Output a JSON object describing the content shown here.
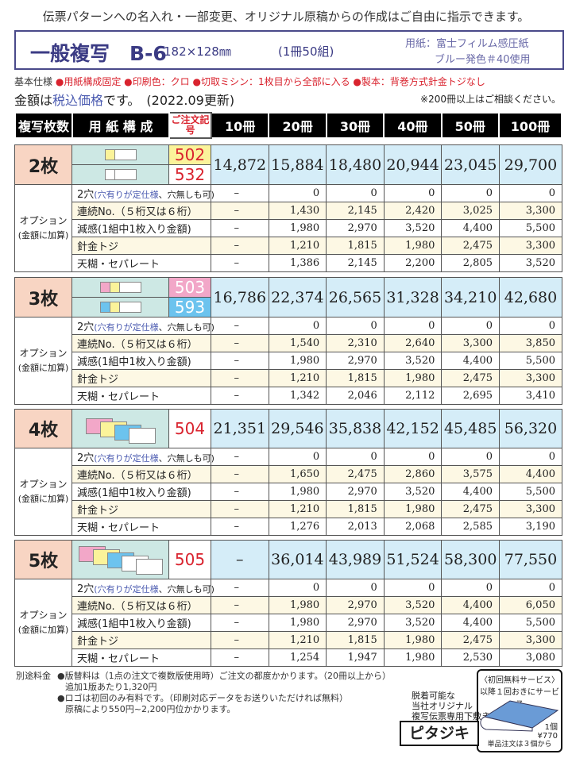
{
  "intro": "伝票パターンへの名入れ・一部変更、オリジナル原稿からの作成はご自由に指示できます。",
  "title": "一般複写　B-6",
  "size": "182×128㎜",
  "per_book": "(1冊50組)",
  "paper_line1": "用紙：富士フィルム感圧紙",
  "paper_line2": "ブルー発色＃40使用",
  "spec_label": "基本仕様",
  "specs": [
    "●用紙構成固定",
    "●印刷色：クロ",
    "●切取ミシン：1枚目から全部に入る",
    "●製本：背巻方式針金トジなし"
  ],
  "price_note_pre": "金額は",
  "price_note_bold": "税込価格",
  "price_note_post": "です。　(2022.09更新)",
  "consult": "※200冊以上はご相談ください。",
  "headers": {
    "count": "複写枚数",
    "paper": "用 紙 構 成",
    "code": "ご注文記　号",
    "qty": [
      "10冊",
      "20冊",
      "30冊",
      "40冊",
      "50冊",
      "100冊"
    ]
  },
  "option_label": "オプション",
  "option_sub": "(金額に加算)",
  "colors": {
    "white": "#ffffff",
    "yellow": "#fbf39a",
    "pink": "#f2a7c8",
    "blue": "#6cc3ee",
    "red": "#d9232e"
  },
  "blocks": [
    {
      "count": "2枚",
      "rows": [
        {
          "code": "502",
          "code_bg": "yellow",
          "sheets": [
            "white",
            "yellow"
          ]
        },
        {
          "code": "532",
          "code_bg": "white",
          "sheets": [
            "white",
            "white"
          ]
        }
      ],
      "prices": [
        "14,872",
        "15,884",
        "18,480",
        "20,944",
        "23,045",
        "29,700"
      ],
      "options": [
        [
          "–",
          "0",
          "0",
          "0",
          "0",
          "0"
        ],
        [
          "–",
          "1,430",
          "2,145",
          "2,420",
          "3,025",
          "3,300"
        ],
        [
          "–",
          "1,980",
          "2,970",
          "3,520",
          "4,400",
          "5,500"
        ],
        [
          "–",
          "1,210",
          "1,815",
          "1,980",
          "2,475",
          "3,300"
        ],
        [
          "–",
          "1,386",
          "2,145",
          "2,200",
          "2,805",
          "3,520"
        ]
      ]
    },
    {
      "count": "3枚",
      "rows": [
        {
          "code": "503",
          "code_bg": "pink",
          "sheets": [
            "white",
            "yellow",
            "pink"
          ]
        },
        {
          "code": "593",
          "code_bg": "blue",
          "sheets": [
            "white",
            "yellow",
            "blue"
          ]
        }
      ],
      "prices": [
        "16,786",
        "22,374",
        "26,565",
        "31,328",
        "34,210",
        "42,680"
      ],
      "options": [
        [
          "–",
          "0",
          "0",
          "0",
          "0",
          "0"
        ],
        [
          "–",
          "1,540",
          "2,310",
          "2,640",
          "3,300",
          "3,850"
        ],
        [
          "–",
          "1,980",
          "2,970",
          "3,520",
          "4,400",
          "5,500"
        ],
        [
          "–",
          "1,210",
          "1,815",
          "1,980",
          "2,475",
          "3,300"
        ],
        [
          "–",
          "1,342",
          "2,046",
          "2,112",
          "2,695",
          "3,410"
        ]
      ]
    },
    {
      "count": "4枚",
      "rows": [
        {
          "code": "504",
          "code_bg": "white",
          "sheets": [
            "white",
            "blue",
            "yellow",
            "pink"
          ]
        }
      ],
      "prices": [
        "21,351",
        "29,546",
        "35,838",
        "42,152",
        "45,485",
        "56,320"
      ],
      "options": [
        [
          "–",
          "0",
          "0",
          "0",
          "0",
          "0"
        ],
        [
          "–",
          "1,650",
          "2,475",
          "2,860",
          "3,575",
          "4,400"
        ],
        [
          "–",
          "1,980",
          "2,970",
          "3,520",
          "4,400",
          "5,500"
        ],
        [
          "–",
          "1,210",
          "1,815",
          "1,980",
          "2,475",
          "3,300"
        ],
        [
          "–",
          "1,276",
          "2,013",
          "2,068",
          "2,585",
          "3,190"
        ]
      ]
    },
    {
      "count": "5枚",
      "rows": [
        {
          "code": "505",
          "code_bg": "white",
          "sheets": [
            "white",
            "white",
            "blue",
            "yellow",
            "pink"
          ]
        }
      ],
      "prices": [
        "–",
        "36,014",
        "43,989",
        "51,524",
        "58,300",
        "77,550"
      ],
      "options": [
        [
          "–",
          "0",
          "0",
          "0",
          "0",
          "0"
        ],
        [
          "–",
          "1,980",
          "2,970",
          "3,520",
          "4,400",
          "6,050"
        ],
        [
          "–",
          "1,980",
          "2,970",
          "3,520",
          "4,400",
          "5,500"
        ],
        [
          "–",
          "1,210",
          "1,815",
          "1,980",
          "2,475",
          "3,300"
        ],
        [
          "–",
          "1,254",
          "1,947",
          "1,980",
          "2,530",
          "3,080"
        ]
      ]
    }
  ],
  "option_names": [
    {
      "pre": "2穴",
      "blue": "(穴有りが定仕様",
      "post": "、穴無しも可)"
    },
    {
      "pre": "連続No.（５桁又は６桁）"
    },
    {
      "pre": "減感(1組中1枚入り金額)"
    },
    {
      "pre": "針金トジ"
    },
    {
      "pre": "天糊・セパレート"
    }
  ],
  "fees": {
    "label": "別途料金",
    "line1": "●版替料は（1点の注文で複数版使用時）ご注文の都度かかります。（20冊以上から）",
    "line2": "追加1版あたり1,320円",
    "line3": "●ロゴは初回のみ有料です。（印刷対応データをお送りいただければ無料）",
    "line4": "原稿により550円~2,200円位かかります。"
  },
  "promo": {
    "line1": "脱着可能な",
    "line2": "当社オリジナル",
    "line3": "複写伝票専用下敷き",
    "product": "ピタジキ",
    "svc1": "〈初回無料サービス〉",
    "svc2": "以降１回おきにサービス",
    "unit": "1個",
    "price": "¥770",
    "min": "単品注文は３個から"
  }
}
